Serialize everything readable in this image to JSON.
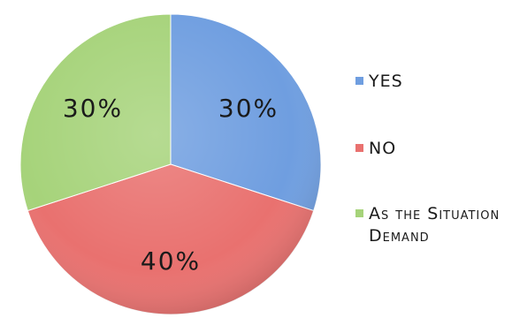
{
  "chart_data": {
    "type": "pie",
    "title": "",
    "slices": [
      {
        "label": "YES",
        "value": 30,
        "display": "30%",
        "color": "#6f9ee0"
      },
      {
        "label": "NO",
        "value": 40,
        "display": "40%",
        "color": "#e9716f"
      },
      {
        "label": "As the Situation Demand",
        "value": 30,
        "display": "30%",
        "color": "#a6d37a"
      }
    ],
    "legend_position": "right"
  }
}
